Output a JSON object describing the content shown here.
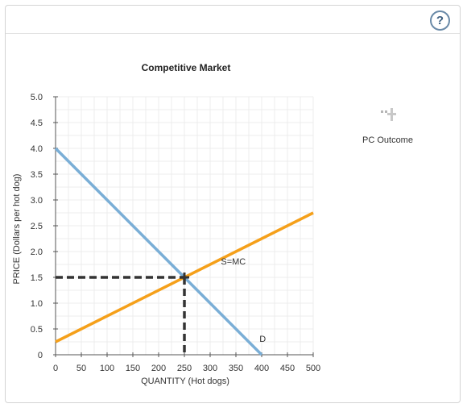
{
  "toolbar": {
    "help_label": "?"
  },
  "legend": {
    "icon": "cross-plus-icon",
    "label": "PC Outcome"
  },
  "chart_data": {
    "type": "line",
    "title": "Competitive Market",
    "xlabel": "QUANTITY (Hot dogs)",
    "ylabel": "PRICE (Dollars per hot dog)",
    "xlim": [
      0,
      500
    ],
    "ylim": [
      0,
      5
    ],
    "x_ticks": [
      0,
      50,
      100,
      150,
      200,
      250,
      300,
      350,
      400,
      450,
      500
    ],
    "x_tick_labels": [
      "0",
      "50",
      "100",
      "150",
      "200",
      "250",
      "300",
      "350",
      "400",
      "450",
      "500"
    ],
    "y_ticks": [
      0,
      0.5,
      1,
      1.5,
      2,
      2.5,
      3,
      3.5,
      4,
      4.5,
      5
    ],
    "y_tick_labels": [
      "0",
      "0.5",
      "1.0",
      "1.5",
      "2.0",
      "2.5",
      "3.0",
      "3.5",
      "4.0",
      "4.5",
      "5.0"
    ],
    "grid": true,
    "series": [
      {
        "name": "S=MC",
        "color": "#f5a01a",
        "points": [
          [
            0,
            0.25
          ],
          [
            500,
            2.75
          ]
        ]
      },
      {
        "name": "D",
        "color": "#7aaed6",
        "points": [
          [
            0,
            4.0
          ],
          [
            400,
            0
          ]
        ]
      }
    ],
    "annotations": [
      {
        "text": "S=MC",
        "x": 345,
        "y": 1.75
      },
      {
        "text": "D",
        "x": 402,
        "y": 0.25
      }
    ],
    "equilibrium": {
      "x": 250,
      "y": 1.5,
      "color": "#333333"
    }
  }
}
